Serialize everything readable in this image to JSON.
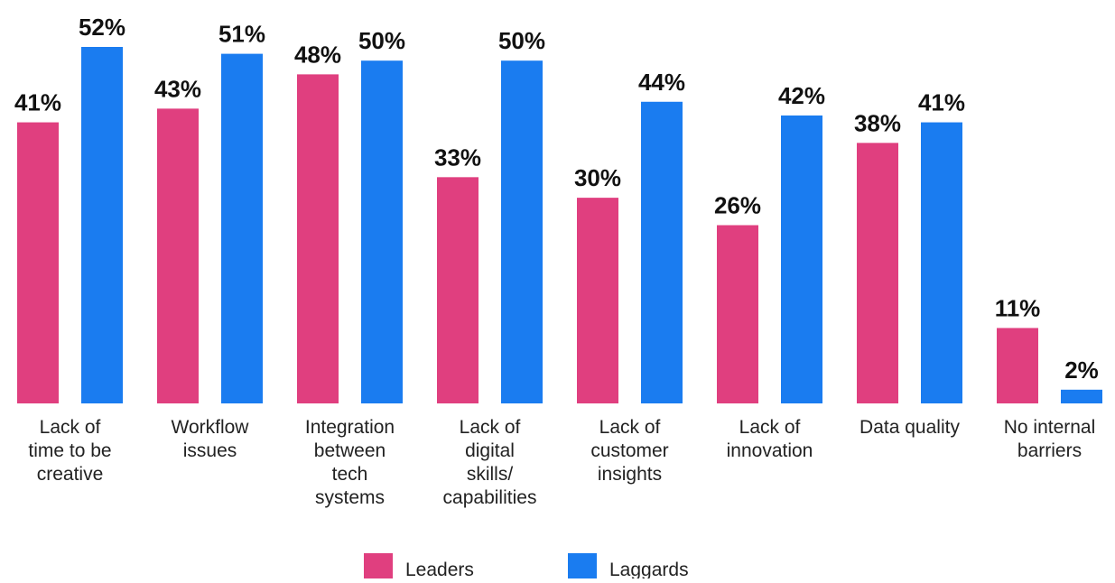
{
  "chart_data": {
    "type": "bar",
    "categories": [
      [
        "Lack of",
        "time to be",
        "creative"
      ],
      [
        "Workflow",
        "issues"
      ],
      [
        "Integration",
        "between",
        "tech",
        "systems"
      ],
      [
        "Lack of",
        "digital",
        "skills/",
        "capabilities"
      ],
      [
        "Lack of",
        "customer",
        "insights"
      ],
      [
        "Lack of",
        "innovation"
      ],
      [
        "Data quality"
      ],
      [
        "No internal",
        "barriers"
      ]
    ],
    "series": [
      {
        "name": "Leaders",
        "color": "#e03f7f",
        "values": [
          41,
          43,
          48,
          33,
          30,
          26,
          38,
          11
        ],
        "labels": [
          "41%",
          "43%",
          "48%",
          "33%",
          "30%",
          "26%",
          "38%",
          "11%"
        ]
      },
      {
        "name": "Laggards",
        "color": "#1a7cf0",
        "values": [
          52,
          51,
          50,
          50,
          44,
          42,
          41,
          2
        ],
        "labels": [
          "52%",
          "51%",
          "50%",
          "50%",
          "44%",
          "42%",
          "41%",
          "2%"
        ]
      }
    ],
    "ylim": [
      0,
      52
    ],
    "grid": false,
    "legend": "bottom-center",
    "title": "",
    "xlabel": "",
    "ylabel": ""
  }
}
